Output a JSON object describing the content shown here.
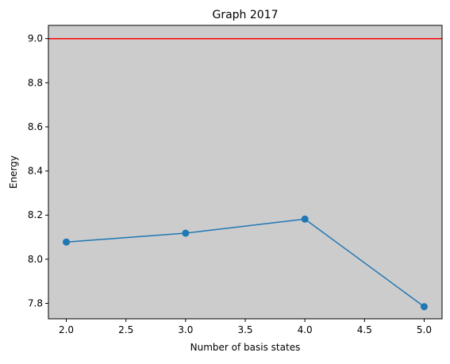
{
  "chart_data": {
    "type": "line",
    "title": "Graph 2017",
    "xlabel": "Number of basis states",
    "ylabel": "Energy",
    "xlim": [
      1.85,
      5.15
    ],
    "ylim": [
      7.73,
      9.06
    ],
    "x_ticks": [
      2.0,
      2.5,
      3.0,
      3.5,
      4.0,
      4.5,
      5.0
    ],
    "x_tick_labels": [
      "2.0",
      "2.5",
      "3.0",
      "3.5",
      "4.0",
      "4.5",
      "5.0"
    ],
    "y_ticks": [
      7.8,
      8.0,
      8.2,
      8.4,
      8.6,
      8.8,
      9.0
    ],
    "y_tick_labels": [
      "7.8",
      "8.0",
      "8.2",
      "8.4",
      "8.6",
      "8.8",
      "9.0"
    ],
    "grid": false,
    "series": [
      {
        "x": [
          2.0,
          3.0,
          4.0,
          5.0
        ],
        "values": [
          8.078,
          8.118,
          8.182,
          7.785
        ],
        "color": "#1f77b4",
        "marker": "circle"
      }
    ],
    "reference_lines": [
      {
        "orientation": "horizontal",
        "y": 9.0,
        "color": "#ff0000"
      }
    ],
    "plot_background": "#cccccc"
  }
}
